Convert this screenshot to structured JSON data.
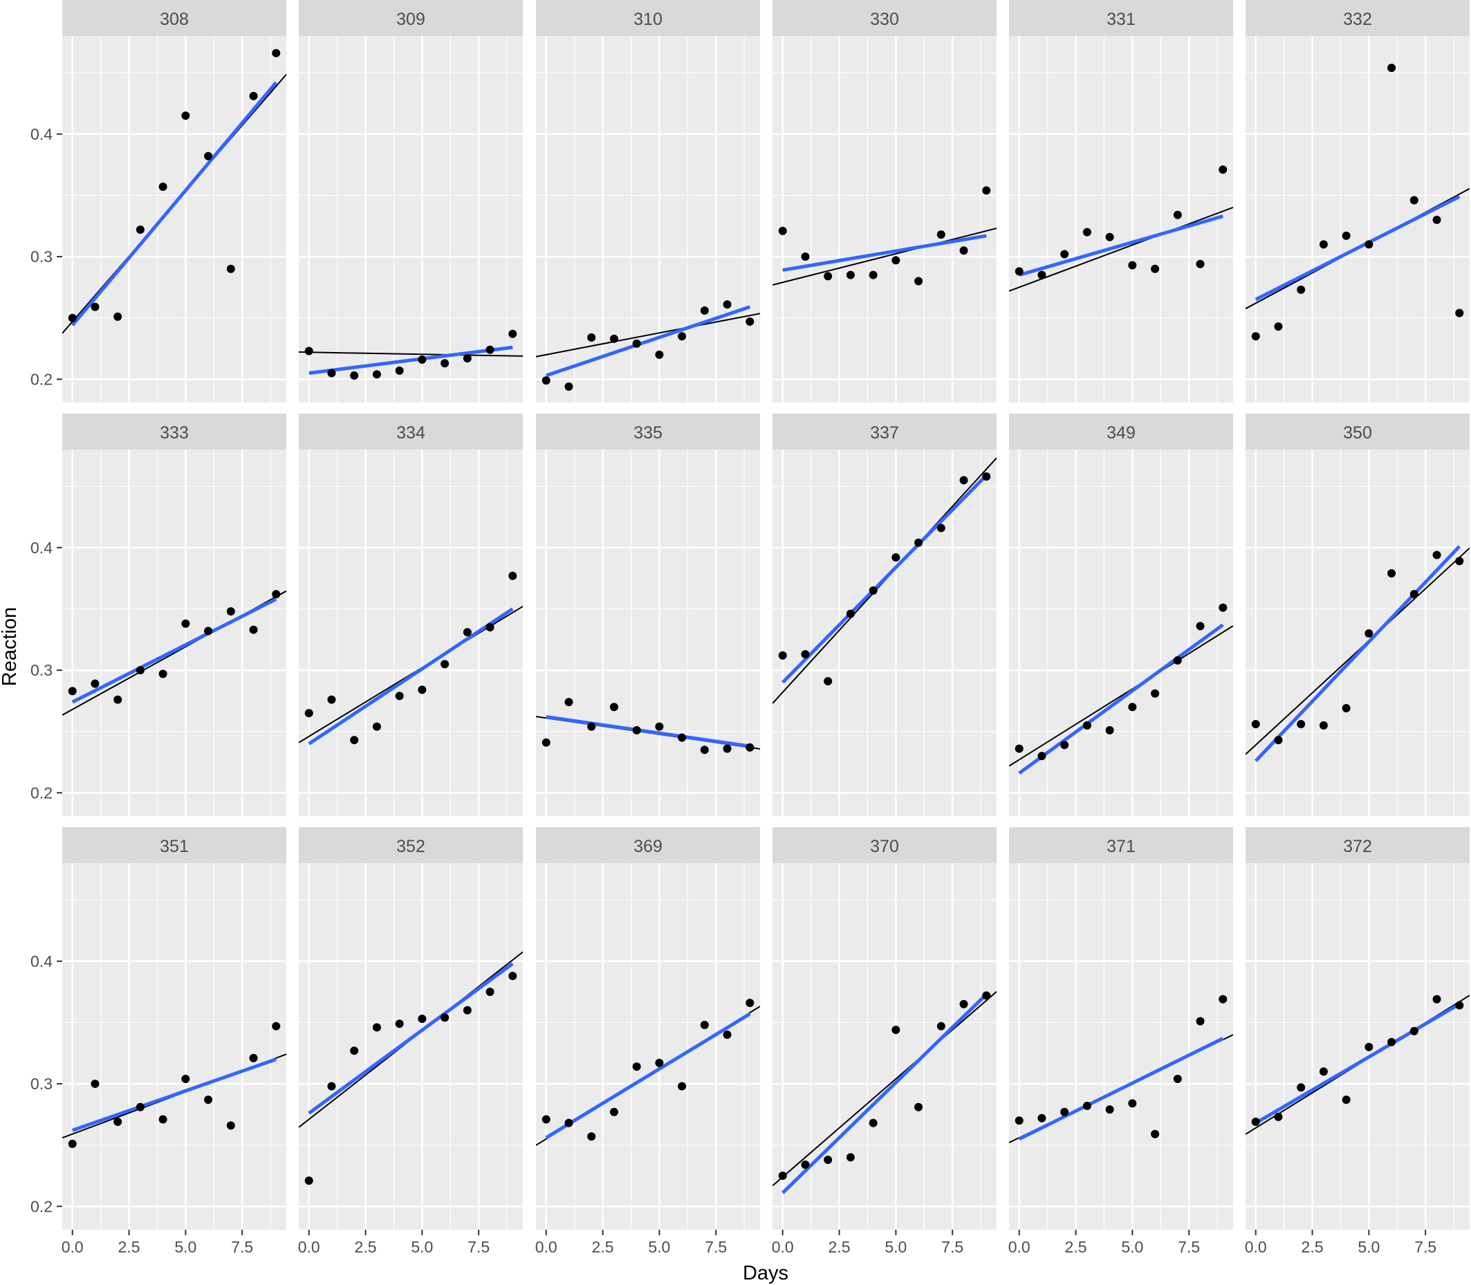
{
  "chart_data": {
    "type": "scatter",
    "title": "",
    "xlabel": "Days",
    "ylabel": "Reaction",
    "xlim": [
      -0.45,
      9.45
    ],
    "ylim": [
      0.181,
      0.48
    ],
    "x_ticks": [
      0,
      2.5,
      5,
      7.5
    ],
    "x_tick_labels": [
      "0.0",
      "2.5",
      "5.0",
      "7.5"
    ],
    "y_ticks": [
      0.2,
      0.3,
      0.4
    ],
    "y_tick_labels": [
      "0.2",
      "0.3",
      "0.4"
    ],
    "grid": true,
    "x": [
      0,
      1,
      2,
      3,
      4,
      5,
      6,
      7,
      8,
      9
    ],
    "colors": {
      "panel_bg": "#ebebeb",
      "strip_bg": "#d9d9d9",
      "grid": "#ffffff",
      "points": "#000000",
      "fit_line": "#3366ff",
      "ref_line": "#000000"
    },
    "panels": [
      {
        "subject": "308",
        "values": [
          0.25,
          0.259,
          0.251,
          0.322,
          0.357,
          0.415,
          0.382,
          0.29,
          0.431,
          0.466
        ],
        "fit": [
          0.244,
          0.442
        ],
        "ref": [
          0.247,
          0.439
        ]
      },
      {
        "subject": "309",
        "values": [
          0.223,
          0.205,
          0.203,
          0.204,
          0.207,
          0.216,
          0.213,
          0.217,
          0.224,
          0.237
        ],
        "fit": [
          0.205,
          0.226
        ],
        "ref": [
          0.222,
          0.219
        ]
      },
      {
        "subject": "310",
        "values": [
          0.199,
          0.194,
          0.234,
          0.233,
          0.229,
          0.22,
          0.235,
          0.256,
          0.261,
          0.247
        ],
        "fit": [
          0.203,
          0.259
        ],
        "ref": [
          0.22,
          0.252
        ]
      },
      {
        "subject": "330",
        "values": [
          0.321,
          0.3,
          0.284,
          0.285,
          0.285,
          0.297,
          0.28,
          0.318,
          0.305,
          0.354
        ],
        "fit": [
          0.289,
          0.317
        ],
        "ref": [
          0.279,
          0.321
        ]
      },
      {
        "subject": "331",
        "values": [
          0.288,
          0.285,
          0.302,
          0.32,
          0.316,
          0.293,
          0.29,
          0.334,
          0.294,
          0.371
        ],
        "fit": [
          0.285,
          0.333
        ],
        "ref": [
          0.275,
          0.337
        ]
      },
      {
        "subject": "332",
        "values": [
          0.235,
          0.243,
          0.273,
          0.31,
          0.317,
          0.31,
          0.454,
          0.346,
          0.33,
          0.254
        ],
        "fit": [
          0.265,
          0.349
        ],
        "ref": [
          0.262,
          0.351
        ]
      },
      {
        "subject": "333",
        "values": [
          0.283,
          0.289,
          0.276,
          0.3,
          0.297,
          0.338,
          0.332,
          0.348,
          0.333,
          0.362
        ],
        "fit": [
          0.274,
          0.358
        ],
        "ref": [
          0.268,
          0.36
        ]
      },
      {
        "subject": "334",
        "values": [
          0.265,
          0.276,
          0.243,
          0.254,
          0.279,
          0.284,
          0.305,
          0.331,
          0.335,
          0.377
        ],
        "fit": [
          0.24,
          0.35
        ],
        "ref": [
          0.246,
          0.347
        ]
      },
      {
        "subject": "335",
        "values": [
          0.241,
          0.274,
          0.254,
          0.27,
          0.251,
          0.254,
          0.245,
          0.235,
          0.236,
          0.237
        ],
        "fit": [
          0.262,
          0.238
        ],
        "ref": [
          0.261,
          0.237
        ]
      },
      {
        "subject": "337",
        "values": [
          0.312,
          0.313,
          0.291,
          0.346,
          0.365,
          0.392,
          0.404,
          0.416,
          0.455,
          0.458
        ],
        "fit": [
          0.29,
          0.459
        ],
        "ref": [
          0.282,
          0.464
        ]
      },
      {
        "subject": "349",
        "values": [
          0.236,
          0.23,
          0.239,
          0.255,
          0.251,
          0.27,
          0.281,
          0.308,
          0.336,
          0.351
        ],
        "fit": [
          0.216,
          0.337
        ],
        "ref": [
          0.227,
          0.331
        ]
      },
      {
        "subject": "350",
        "values": [
          0.256,
          0.243,
          0.256,
          0.255,
          0.269,
          0.33,
          0.379,
          0.362,
          0.394,
          0.389
        ],
        "fit": [
          0.226,
          0.401
        ],
        "ref": [
          0.239,
          0.392
        ]
      },
      {
        "subject": "351",
        "values": [
          0.251,
          0.3,
          0.269,
          0.281,
          0.271,
          0.304,
          0.287,
          0.266,
          0.321,
          0.347
        ],
        "fit": [
          0.262,
          0.32
        ],
        "ref": [
          0.259,
          0.321
        ]
      },
      {
        "subject": "352",
        "values": [
          0.221,
          0.298,
          0.327,
          0.346,
          0.349,
          0.353,
          0.354,
          0.36,
          0.375,
          0.388
        ],
        "fit": [
          0.276,
          0.398
        ],
        "ref": [
          0.271,
          0.401
        ]
      },
      {
        "subject": "369",
        "values": [
          0.271,
          0.268,
          0.257,
          0.277,
          0.314,
          0.317,
          0.298,
          0.348,
          0.34,
          0.366
        ],
        "fit": [
          0.256,
          0.357
        ],
        "ref": [
          0.255,
          0.358
        ]
      },
      {
        "subject": "370",
        "values": [
          0.225,
          0.234,
          0.238,
          0.24,
          0.268,
          0.344,
          0.281,
          0.347,
          0.365,
          0.372
        ],
        "fit": [
          0.211,
          0.373
        ],
        "ref": [
          0.224,
          0.368
        ]
      },
      {
        "subject": "371",
        "values": [
          0.27,
          0.272,
          0.277,
          0.282,
          0.279,
          0.284,
          0.259,
          0.304,
          0.351,
          0.369
        ],
        "fit": [
          0.255,
          0.337
        ],
        "ref": [
          0.256,
          0.336
        ]
      },
      {
        "subject": "372",
        "values": [
          0.269,
          0.273,
          0.297,
          0.31,
          0.287,
          0.33,
          0.334,
          0.343,
          0.369,
          0.364
        ],
        "fit": [
          0.268,
          0.365
        ],
        "ref": [
          0.264,
          0.367
        ]
      }
    ]
  }
}
